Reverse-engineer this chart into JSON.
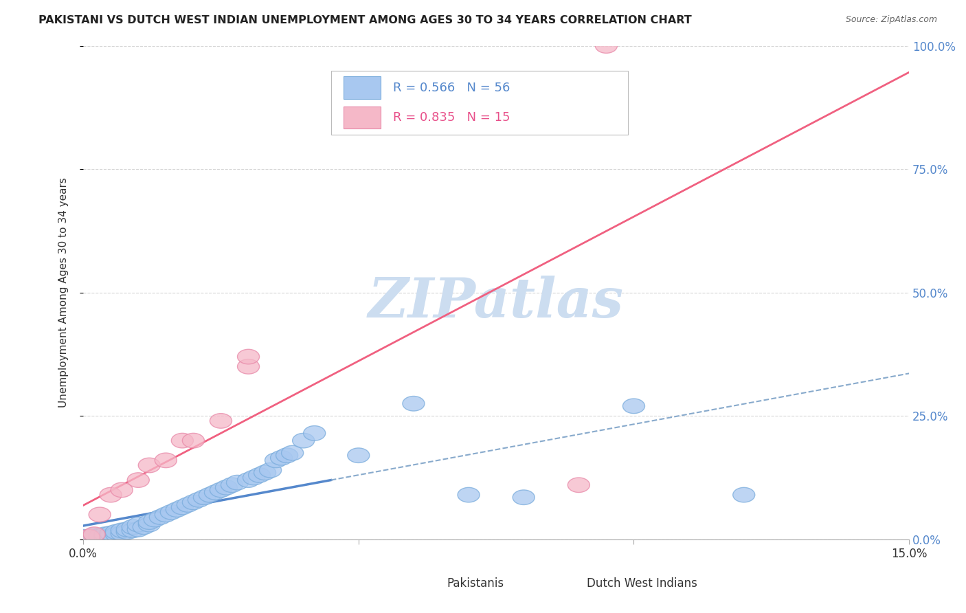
{
  "title": "PAKISTANI VS DUTCH WEST INDIAN UNEMPLOYMENT AMONG AGES 30 TO 34 YEARS CORRELATION CHART",
  "source": "Source: ZipAtlas.com",
  "ylabel": "Unemployment Among Ages 30 to 34 years",
  "xlim": [
    0,
    0.15
  ],
  "ylim": [
    0,
    1.0
  ],
  "xticks": [
    0.0,
    0.05,
    0.1,
    0.15
  ],
  "yticks": [
    0.0,
    0.25,
    0.5,
    0.75,
    1.0
  ],
  "xticklabels": [
    "0.0%",
    "",
    "",
    "15.0%"
  ],
  "yticklabels": [
    "0.0%",
    "25.0%",
    "50.0%",
    "75.0%",
    "100.0%"
  ],
  "pakistani_R": 0.566,
  "pakistani_N": 56,
  "dwi_R": 0.835,
  "dwi_N": 15,
  "pakistani_color": "#a8c8f0",
  "pakistani_edge_color": "#7aacdc",
  "dwi_color": "#f5b8c8",
  "dwi_edge_color": "#e888a8",
  "pakistani_line_color": "#5588cc",
  "pakistani_line_style": "solid",
  "dwi_line_color": "#f06080",
  "dwi_line_style": "solid",
  "pakistani_dash_color": "#88aacc",
  "watermark": "ZIPatlas",
  "watermark_color": "#ccddf0",
  "background_color": "#ffffff",
  "grid_color": "#cccccc",
  "title_color": "#222222",
  "source_color": "#666666",
  "ylabel_color": "#333333",
  "tick_color": "#333333",
  "right_tick_color": "#5588cc",
  "legend_edge_color": "#bbbbbb",
  "pak_x": [
    0.0,
    0.001,
    0.002,
    0.002,
    0.003,
    0.003,
    0.004,
    0.004,
    0.005,
    0.005,
    0.006,
    0.006,
    0.007,
    0.007,
    0.008,
    0.008,
    0.009,
    0.009,
    0.01,
    0.01,
    0.011,
    0.012,
    0.012,
    0.013,
    0.014,
    0.015,
    0.016,
    0.017,
    0.018,
    0.019,
    0.02,
    0.021,
    0.022,
    0.023,
    0.024,
    0.025,
    0.026,
    0.027,
    0.028,
    0.03,
    0.031,
    0.032,
    0.033,
    0.034,
    0.035,
    0.036,
    0.037,
    0.038,
    0.04,
    0.042,
    0.05,
    0.06,
    0.07,
    0.08,
    0.1,
    0.12
  ],
  "pak_y": [
    0.005,
    0.003,
    0.005,
    0.008,
    0.003,
    0.007,
    0.005,
    0.01,
    0.007,
    0.012,
    0.01,
    0.015,
    0.012,
    0.018,
    0.015,
    0.02,
    0.018,
    0.025,
    0.02,
    0.03,
    0.025,
    0.03,
    0.035,
    0.04,
    0.045,
    0.05,
    0.055,
    0.06,
    0.065,
    0.07,
    0.075,
    0.08,
    0.085,
    0.09,
    0.095,
    0.1,
    0.105,
    0.11,
    0.115,
    0.12,
    0.125,
    0.13,
    0.135,
    0.14,
    0.16,
    0.165,
    0.17,
    0.175,
    0.2,
    0.215,
    0.17,
    0.275,
    0.09,
    0.085,
    0.27,
    0.09
  ],
  "dwi_x": [
    0.001,
    0.002,
    0.003,
    0.005,
    0.007,
    0.01,
    0.012,
    0.015,
    0.018,
    0.02,
    0.025,
    0.03,
    0.03,
    0.09,
    0.095
  ],
  "dwi_y": [
    0.005,
    0.01,
    0.05,
    0.09,
    0.1,
    0.12,
    0.15,
    0.16,
    0.2,
    0.2,
    0.24,
    0.35,
    0.37,
    0.11,
    1.0
  ]
}
